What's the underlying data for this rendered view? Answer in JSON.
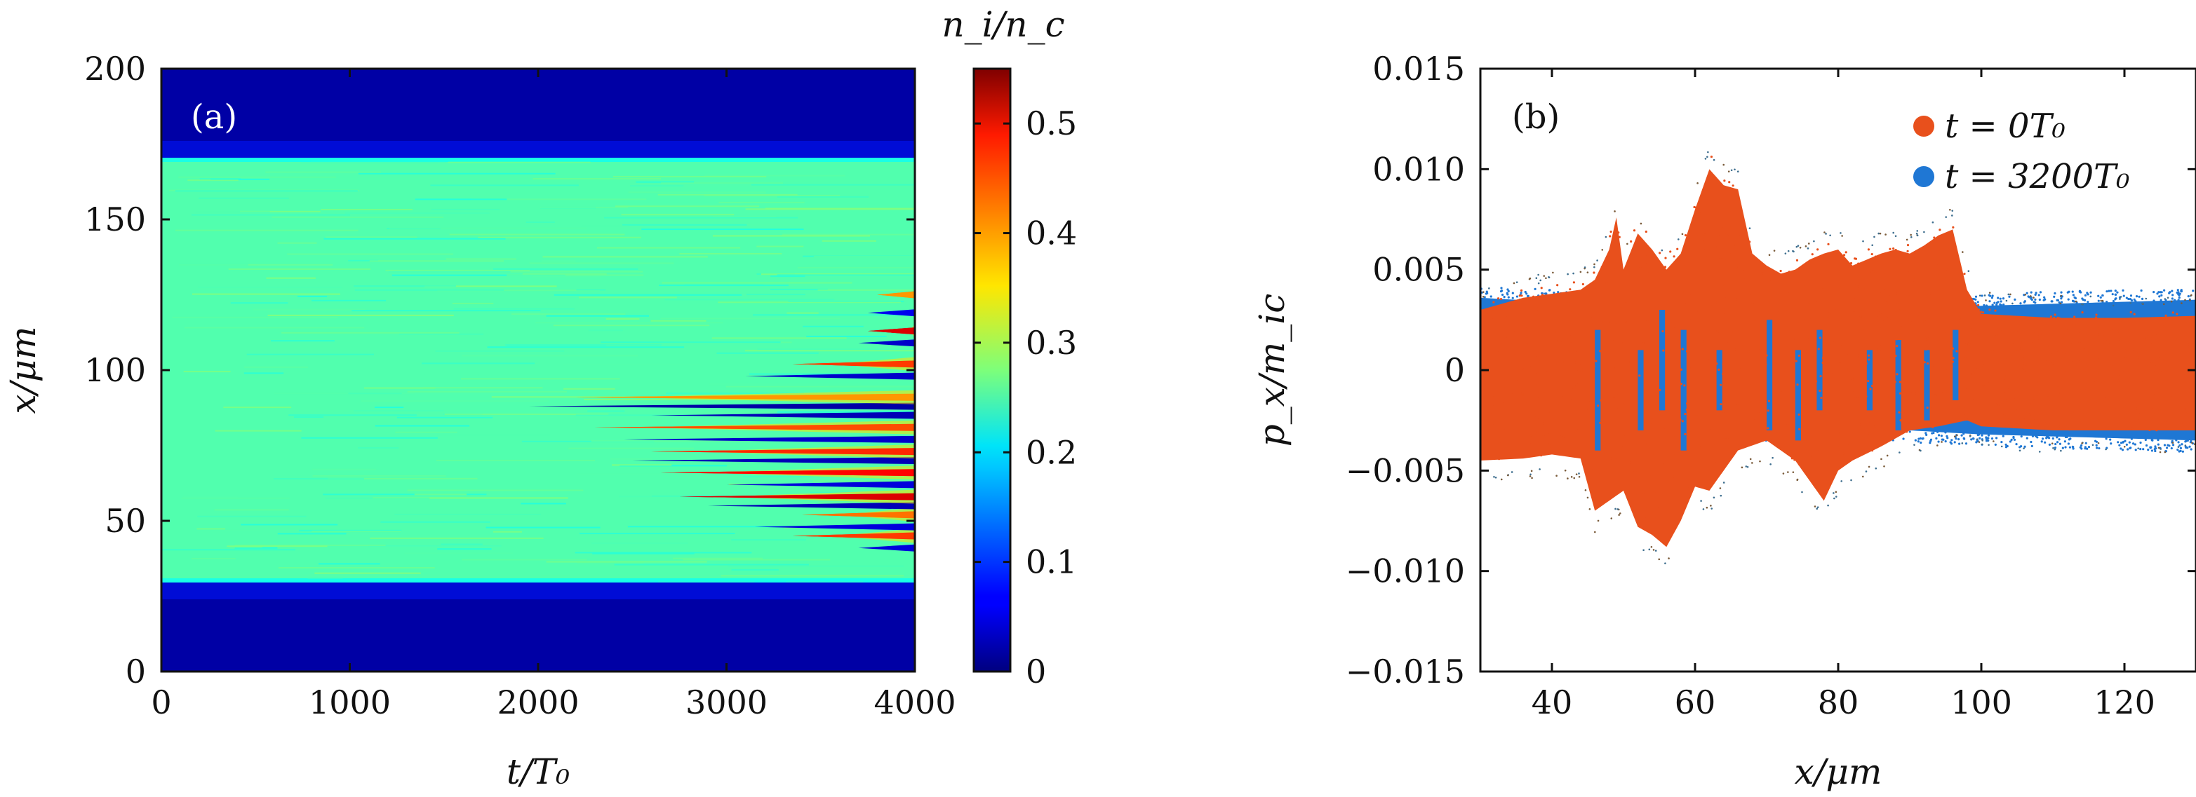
{
  "chart_data": [
    {
      "type": "heatmap",
      "panel_label": "(a)",
      "xlabel": "t/T₀",
      "ylabel": "x/μm",
      "xlim": [
        0,
        4000
      ],
      "ylim": [
        0,
        200
      ],
      "x_ticks": [
        0,
        1000,
        2000,
        3000,
        4000
      ],
      "x_tick_labels": [
        "0",
        "1000",
        "2000",
        "3000",
        "4000"
      ],
      "y_ticks": [
        0,
        50,
        100,
        150,
        200
      ],
      "y_tick_labels": [
        "0",
        "50",
        "100",
        "150",
        "200"
      ],
      "colorbar": {
        "label": "n_i/n_c",
        "range": [
          0,
          0.55
        ],
        "colormap": "jet",
        "ticks": [
          0,
          0.1,
          0.2,
          0.3,
          0.4,
          0.5
        ],
        "tick_labels": [
          "0",
          "0.1",
          "0.2",
          "0.3",
          "0.4",
          "0.5"
        ]
      },
      "regions": {
        "target_x_range": [
          30,
          170
        ],
        "target_density": 0.25,
        "background_density": 0.02,
        "filament_onset_t": 1900
      },
      "filaments": [
        {
          "x": 41,
          "t_start": 3700,
          "density": 0.05
        },
        {
          "x": 45,
          "t_start": 3350,
          "density": 0.45
        },
        {
          "x": 48,
          "t_start": 3150,
          "density": 0.05
        },
        {
          "x": 52,
          "t_start": 3400,
          "density": 0.42
        },
        {
          "x": 55,
          "t_start": 2900,
          "density": 0.03
        },
        {
          "x": 58,
          "t_start": 2750,
          "density": 0.5
        },
        {
          "x": 62,
          "t_start": 3000,
          "density": 0.05
        },
        {
          "x": 66,
          "t_start": 2650,
          "density": 0.48
        },
        {
          "x": 70,
          "t_start": 2500,
          "density": 0.03
        },
        {
          "x": 73,
          "t_start": 2600,
          "density": 0.46
        },
        {
          "x": 77,
          "t_start": 2450,
          "density": 0.04
        },
        {
          "x": 81,
          "t_start": 2300,
          "density": 0.44
        },
        {
          "x": 85,
          "t_start": 2600,
          "density": 0.03
        },
        {
          "x": 88,
          "t_start": 1950,
          "density": 0.02
        },
        {
          "x": 91,
          "t_start": 2200,
          "density": 0.4
        },
        {
          "x": 98,
          "t_start": 3100,
          "density": 0.04
        },
        {
          "x": 102,
          "t_start": 3350,
          "density": 0.45
        },
        {
          "x": 109,
          "t_start": 3700,
          "density": 0.04
        },
        {
          "x": 113,
          "t_start": 3750,
          "density": 0.5
        },
        {
          "x": 119,
          "t_start": 3750,
          "density": 0.06
        },
        {
          "x": 125,
          "t_start": 3800,
          "density": 0.4
        }
      ]
    },
    {
      "type": "scatter",
      "panel_label": "(b)",
      "xlabel": "x/μm",
      "ylabel": "p_x/m_ic",
      "xlim": [
        30,
        130
      ],
      "ylim": [
        -0.015,
        0.015
      ],
      "x_ticks": [
        40,
        60,
        80,
        100,
        120
      ],
      "x_tick_labels": [
        "40",
        "60",
        "80",
        "100",
        "120"
      ],
      "y_ticks": [
        -0.015,
        -0.01,
        -0.005,
        0,
        0.005,
        0.01,
        0.015
      ],
      "y_tick_labels": [
        "−0.015",
        "−0.010",
        "−0.005",
        "0",
        "0.005",
        "0.010",
        "0.015"
      ],
      "legend_position": "top-right",
      "series": [
        {
          "name": "t = 3200T₀",
          "color": "#1f77d4",
          "band_halfwidth": 0.0033,
          "envelope": [
            [
              30,
              0.0036
            ],
            [
              40,
              0.0034
            ],
            [
              50,
              0.0031
            ],
            [
              60,
              0.003
            ],
            [
              70,
              0.003
            ],
            [
              80,
              0.0031
            ],
            [
              90,
              0.003
            ],
            [
              100,
              0.0032
            ],
            [
              110,
              0.0033
            ],
            [
              120,
              0.0034
            ],
            [
              130,
              0.0035
            ]
          ]
        },
        {
          "name": "t = 0T₀",
          "color": "#e8501c",
          "envelope": [
            [
              30,
              0.003
            ],
            [
              33,
              0.0033
            ],
            [
              36,
              0.0036
            ],
            [
              40,
              0.0038
            ],
            [
              44,
              0.004
            ],
            [
              46,
              0.0045
            ],
            [
              48,
              0.006
            ],
            [
              49,
              0.0076
            ],
            [
              50,
              0.005
            ],
            [
              52,
              0.0068
            ],
            [
              54,
              0.006
            ],
            [
              56,
              0.005
            ],
            [
              58,
              0.0058
            ],
            [
              60,
              0.008
            ],
            [
              62,
              0.01
            ],
            [
              64,
              0.0092
            ],
            [
              66,
              0.009
            ],
            [
              68,
              0.0058
            ],
            [
              70,
              0.0052
            ],
            [
              72,
              0.0048
            ],
            [
              74,
              0.005
            ],
            [
              76,
              0.0055
            ],
            [
              78,
              0.0058
            ],
            [
              80,
              0.006
            ],
            [
              82,
              0.0052
            ],
            [
              84,
              0.0055
            ],
            [
              86,
              0.0058
            ],
            [
              88,
              0.006
            ],
            [
              90,
              0.0058
            ],
            [
              92,
              0.0062
            ],
            [
              94,
              0.0067
            ],
            [
              96,
              0.007
            ],
            [
              98,
              0.004
            ],
            [
              100,
              0.0028
            ],
            [
              110,
              0.0026
            ],
            [
              120,
              0.0026
            ],
            [
              130,
              0.0027
            ]
          ],
          "lower_envelope": [
            [
              30,
              -0.0045
            ],
            [
              36,
              -0.0044
            ],
            [
              40,
              -0.0042
            ],
            [
              44,
              -0.0044
            ],
            [
              46,
              -0.007
            ],
            [
              48,
              -0.0065
            ],
            [
              50,
              -0.006
            ],
            [
              52,
              -0.0078
            ],
            [
              54,
              -0.0082
            ],
            [
              56,
              -0.0088
            ],
            [
              58,
              -0.0075
            ],
            [
              60,
              -0.0058
            ],
            [
              62,
              -0.006
            ],
            [
              64,
              -0.005
            ],
            [
              66,
              -0.004
            ],
            [
              70,
              -0.0035
            ],
            [
              74,
              -0.0045
            ],
            [
              78,
              -0.0065
            ],
            [
              80,
              -0.005
            ],
            [
              82,
              -0.0045
            ],
            [
              86,
              -0.0038
            ],
            [
              90,
              -0.003
            ],
            [
              94,
              -0.0028
            ],
            [
              98,
              -0.0025
            ],
            [
              100,
              -0.0028
            ],
            [
              110,
              -0.003
            ],
            [
              120,
              -0.003
            ],
            [
              130,
              -0.003
            ]
          ]
        }
      ]
    }
  ]
}
